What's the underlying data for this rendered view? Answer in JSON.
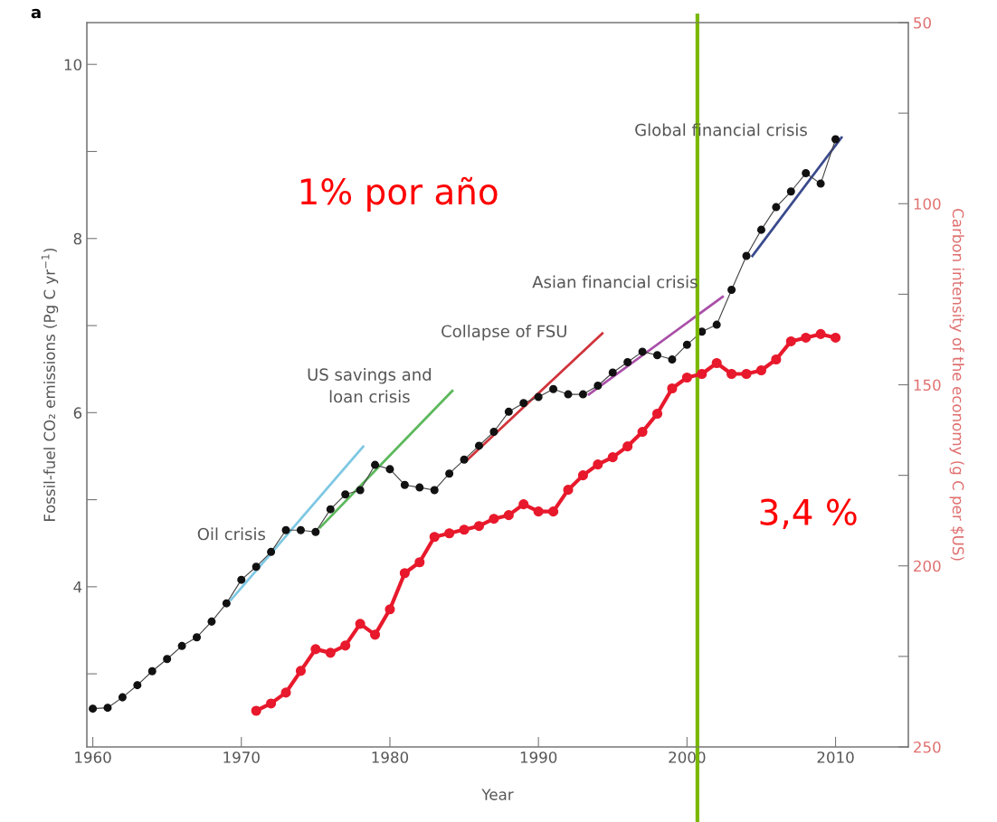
{
  "chart_data": {
    "type": "line",
    "title": "a",
    "xlabel": "Year",
    "ylabel": "Fossil-fuel CO₂ emissions (Pg C yr$^{−1}$)",
    "y2label": "Carbon intensity of the economy (g C per $US)",
    "x": [
      1960,
      1961,
      1962,
      1963,
      1964,
      1965,
      1966,
      1967,
      1968,
      1969,
      1970,
      1971,
      1972,
      1973,
      1974,
      1975,
      1976,
      1977,
      1978,
      1979,
      1980,
      1981,
      1982,
      1983,
      1984,
      1985,
      1986,
      1987,
      1988,
      1989,
      1990,
      1991,
      1992,
      1993,
      1994,
      1995,
      1996,
      1997,
      1998,
      1999,
      2000,
      2001,
      2002,
      2003,
      2004,
      2005,
      2006,
      2007,
      2008,
      2009,
      2010
    ],
    "series": [
      {
        "color": "#111111",
        "marker": "circle",
        "values": [
          2.6,
          2.61,
          2.73,
          2.87,
          3.03,
          3.17,
          3.32,
          3.42,
          3.6,
          3.81,
          4.08,
          4.23,
          4.4,
          4.65,
          4.65,
          4.63,
          4.89,
          5.06,
          5.11,
          5.4,
          5.35,
          5.17,
          5.14,
          5.11,
          5.3,
          5.46,
          5.62,
          5.78,
          6.01,
          6.11,
          6.18,
          6.27,
          6.21,
          6.21,
          6.31,
          6.46,
          6.58,
          6.7,
          6.66,
          6.61,
          6.78,
          6.93,
          7.01,
          7.41,
          7.8,
          8.1,
          8.36,
          8.54,
          8.75,
          8.63,
          9.14
        ]
      },
      {
        "color": "#e8192c",
        "marker": "circle",
        "axis": "y2",
        "x": [
          1971,
          1972,
          1973,
          1974,
          1975,
          1976,
          1977,
          1978,
          1979,
          1980,
          1981,
          1982,
          1983,
          1984,
          1985,
          1986,
          1987,
          1988,
          1989,
          1990,
          1991,
          1992,
          1993,
          1994,
          1995,
          1996,
          1997,
          1998,
          1999,
          2000,
          2001,
          2002,
          2003,
          2004,
          2005,
          2006,
          2007,
          2008,
          2009,
          2010
        ],
        "values": [
          240,
          238,
          235,
          229,
          223,
          224,
          222,
          216,
          219,
          212,
          202,
          199,
          192,
          191,
          190,
          189,
          187,
          186,
          183,
          185,
          185,
          179,
          175,
          172,
          170,
          167,
          163,
          158,
          151,
          148,
          147,
          144,
          147,
          147,
          146,
          143,
          138,
          137,
          136,
          137
        ]
      },
      {
        "color": "#7ec8e3",
        "x": [
          1969.3,
          1978.2
        ],
        "values": [
          3.85,
          5.61
        ]
      },
      {
        "color": "#5cb85c",
        "x": [
          1975.3,
          1984.2
        ],
        "values": [
          4.68,
          6.25
        ]
      },
      {
        "color": "#d0343c",
        "x": [
          1985.1,
          1994.3
        ],
        "values": [
          5.44,
          6.91
        ]
      },
      {
        "color": "#a94fa8",
        "x": [
          1993.4,
          2002.4
        ],
        "values": [
          6.21,
          7.33
        ]
      },
      {
        "color": "#3a4a8c",
        "x": [
          2004.4,
          2010.4
        ],
        "values": [
          7.8,
          9.16
        ]
      }
    ],
    "xlim": [
      1959.6,
      2014.9
    ],
    "xticks": [
      1960,
      1970,
      1980,
      1990,
      2000,
      2010
    ],
    "ylim": [
      2.16,
      10.48
    ],
    "yticks": [
      {
        "value": 3,
        "label": null
      },
      4,
      {
        "value": 5,
        "label": null
      },
      6,
      {
        "value": 7,
        "label": null
      },
      8,
      {
        "value": 9,
        "label": null
      },
      10
    ],
    "y2lim": [
      250,
      50
    ],
    "y2ticks": [
      50,
      {
        "value": 75,
        "label": null
      },
      100,
      {
        "value": 125,
        "label": null
      },
      150,
      {
        "value": 175,
        "label": null
      },
      200,
      {
        "value": 225,
        "label": null
      },
      250
    ],
    "ref_lines": [
      {
        "axis": "x",
        "value": 2000.7,
        "color": "#7ab800"
      }
    ],
    "annotations": [
      "Oil crisis",
      "US savings and\nloan crisis",
      "Collapse of FSU",
      "Asian financial crisis",
      "Global financial crisis",
      "1% por año",
      "3,4 %"
    ],
    "grid": false,
    "legend": false
  }
}
